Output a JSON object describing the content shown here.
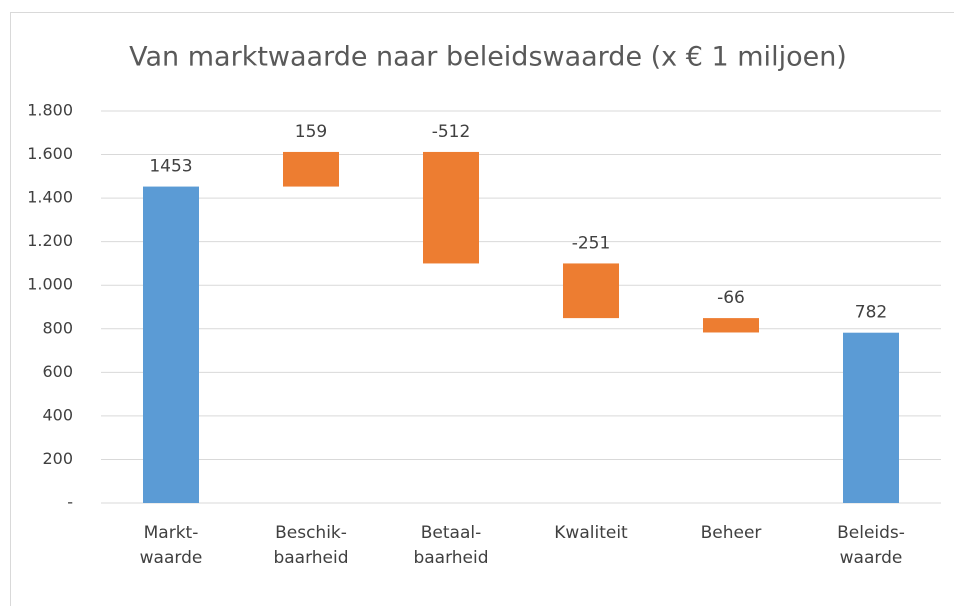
{
  "chart_data": {
    "type": "waterfall",
    "title": "Van marktwaarde naar beleidswaarde (x € 1 miljoen)",
    "categories": [
      "Markt-\nwaarde",
      "Beschik-\nbaarheid",
      "Betaal-\nbaarheid",
      "Kwaliteit",
      "Beheer",
      "Beleids-\nwaarde"
    ],
    "values": [
      1453,
      159,
      -512,
      -251,
      -66,
      782
    ],
    "totals": [
      0,
      5
    ],
    "total_color": "#5b9bd5",
    "delta_color": "#ed7d31",
    "ylim": [
      0,
      1800
    ],
    "yticks": [
      {
        "value": 0,
        "label": "-"
      },
      200,
      400,
      600,
      800,
      {
        "value": 1000,
        "label": "1.000"
      },
      {
        "value": 1200,
        "label": "1.200"
      },
      {
        "value": 1400,
        "label": "1.400"
      },
      {
        "value": 1600,
        "label": "1.600"
      },
      {
        "value": 1800,
        "label": "1.800"
      }
    ],
    "grid": true
  }
}
